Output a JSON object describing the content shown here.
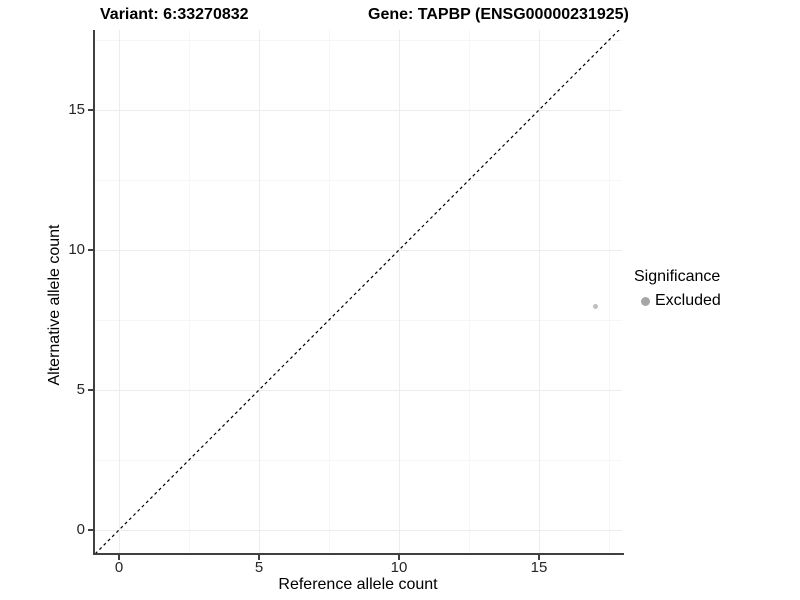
{
  "titles": {
    "variant": "Variant: 6:33270832",
    "gene": "Gene: TAPBP (ENSG00000231925)"
  },
  "axes": {
    "x": {
      "title": "Reference allele count",
      "ticks": [
        "0",
        "5",
        "10",
        "15"
      ]
    },
    "y": {
      "title": "Alternative allele count",
      "ticks": [
        "0",
        "5",
        "10",
        "15"
      ]
    }
  },
  "legend": {
    "title": "Significance",
    "items": [
      {
        "label": "Excluded",
        "color": "#a6a6a6",
        "marker": "circle-icon"
      }
    ]
  },
  "colors": {
    "point": "#bfbfbf",
    "axis_line": "#404040",
    "grid_major": "#ececec",
    "grid_minor": "#f6f6f6",
    "identity_line": "#000000"
  },
  "chart_data": {
    "type": "scatter",
    "title": "Variant: 6:33270832 / Gene: TAPBP (ENSG00000231925)",
    "xlabel": "Reference allele count",
    "ylabel": "Alternative allele count",
    "xlim": [
      -0.9,
      18.0
    ],
    "ylim": [
      -0.85,
      17.9
    ],
    "xticks": [
      0,
      5,
      10,
      15
    ],
    "yticks": [
      0,
      5,
      10,
      15
    ],
    "xticks_minor": [
      2.5,
      7.5,
      12.5,
      17.5
    ],
    "yticks_minor": [
      2.5,
      7.5,
      12.5,
      17.5
    ],
    "grid": "major+minor",
    "legend_position": "right",
    "series": [
      {
        "name": "Excluded",
        "marker": "circle",
        "color": "#bfbfbf",
        "points": [
          {
            "x": 17,
            "y": 8
          }
        ]
      }
    ],
    "reference_line": {
      "type": "identity y=x",
      "style": "dashed",
      "from": -0.85,
      "to": 17.9
    }
  }
}
